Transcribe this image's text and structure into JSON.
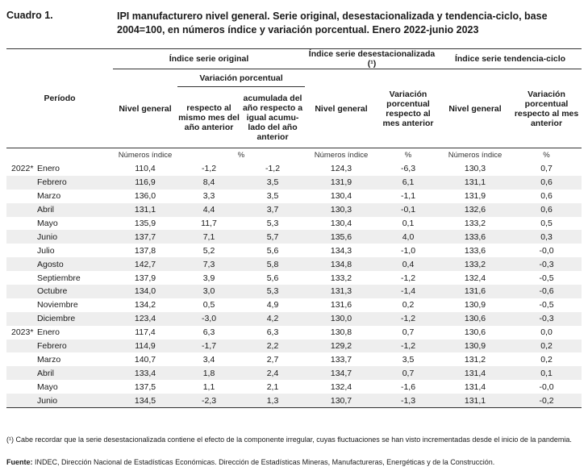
{
  "header": {
    "cuadro": "Cuadro 1.",
    "title": "IPI manufacturero nivel general. Serie original, desestacionalizada y tendencia-ciclo, base 2004=100, en números índice y variación porcentual. Enero 2022-junio 2023"
  },
  "table": {
    "periodo": "Período",
    "group_original": "Índice serie original",
    "group_desest": "Índice serie desestacionalizada (¹)",
    "group_tendencia": "Índice serie tendencia-ciclo",
    "sub_variacion": "Variación porcentual",
    "col_nivel": "Nivel general",
    "col_resp_anio": "respecto al mismo mes del año anterior",
    "col_acumulada": "acumulada del año respecto a igual acumu-lado del año anterior",
    "col_var_mes": "Variación porcentual respecto al mes anterior",
    "unit_indices": "Números índice",
    "unit_pct": "%",
    "rows": [
      {
        "year": "2022*",
        "month": "Enero",
        "c1": "110,4",
        "c2": "-1,2",
        "c3": "-1,2",
        "c4": "124,3",
        "c5": "-6,3",
        "c6": "130,3",
        "c7": "0,7"
      },
      {
        "year": "",
        "month": "Febrero",
        "c1": "116,9",
        "c2": "8,4",
        "c3": "3,5",
        "c4": "131,9",
        "c5": "6,1",
        "c6": "131,1",
        "c7": "0,6"
      },
      {
        "year": "",
        "month": "Marzo",
        "c1": "136,0",
        "c2": "3,3",
        "c3": "3,5",
        "c4": "130,4",
        "c5": "-1,1",
        "c6": "131,9",
        "c7": "0,6"
      },
      {
        "year": "",
        "month": "Abril",
        "c1": "131,1",
        "c2": "4,4",
        "c3": "3,7",
        "c4": "130,3",
        "c5": "-0,1",
        "c6": "132,6",
        "c7": "0,6"
      },
      {
        "year": "",
        "month": "Mayo",
        "c1": "135,9",
        "c2": "11,7",
        "c3": "5,3",
        "c4": "130,4",
        "c5": "0,1",
        "c6": "133,2",
        "c7": "0,5"
      },
      {
        "year": "",
        "month": "Junio",
        "c1": "137,7",
        "c2": "7,1",
        "c3": "5,7",
        "c4": "135,6",
        "c5": "4,0",
        "c6": "133,6",
        "c7": "0,3"
      },
      {
        "year": "",
        "month": "Julio",
        "c1": "137,8",
        "c2": "5,2",
        "c3": "5,6",
        "c4": "134,3",
        "c5": "-1,0",
        "c6": "133,6",
        "c7": "-0,0"
      },
      {
        "year": "",
        "month": "Agosto",
        "c1": "142,7",
        "c2": "7,3",
        "c3": "5,8",
        "c4": "134,8",
        "c5": "0,4",
        "c6": "133,2",
        "c7": "-0,3"
      },
      {
        "year": "",
        "month": "Septiembre",
        "c1": "137,9",
        "c2": "3,9",
        "c3": "5,6",
        "c4": "133,2",
        "c5": "-1,2",
        "c6": "132,4",
        "c7": "-0,5"
      },
      {
        "year": "",
        "month": "Octubre",
        "c1": "134,0",
        "c2": "3,0",
        "c3": "5,3",
        "c4": "131,3",
        "c5": "-1,4",
        "c6": "131,6",
        "c7": "-0,6"
      },
      {
        "year": "",
        "month": "Noviembre",
        "c1": "134,2",
        "c2": "0,5",
        "c3": "4,9",
        "c4": "131,6",
        "c5": "0,2",
        "c6": "130,9",
        "c7": "-0,5"
      },
      {
        "year": "",
        "month": "Diciembre",
        "c1": "123,4",
        "c2": "-3,0",
        "c3": "4,2",
        "c4": "130,0",
        "c5": "-1,2",
        "c6": "130,6",
        "c7": "-0,3"
      },
      {
        "year": "2023*",
        "month": "Enero",
        "c1": "117,4",
        "c2": "6,3",
        "c3": "6,3",
        "c4": "130,8",
        "c5": "0,7",
        "c6": "130,6",
        "c7": "0,0"
      },
      {
        "year": "",
        "month": "Febrero",
        "c1": "114,9",
        "c2": "-1,7",
        "c3": "2,2",
        "c4": "129,2",
        "c5": "-1,2",
        "c6": "130,9",
        "c7": "0,2"
      },
      {
        "year": "",
        "month": "Marzo",
        "c1": "140,7",
        "c2": "3,4",
        "c3": "2,7",
        "c4": "133,7",
        "c5": "3,5",
        "c6": "131,2",
        "c7": "0,2"
      },
      {
        "year": "",
        "month": "Abril",
        "c1": "133,4",
        "c2": "1,8",
        "c3": "2,4",
        "c4": "134,7",
        "c5": "0,7",
        "c6": "131,4",
        "c7": "0,1"
      },
      {
        "year": "",
        "month": "Mayo",
        "c1": "137,5",
        "c2": "1,1",
        "c3": "2,1",
        "c4": "132,4",
        "c5": "-1,6",
        "c6": "131,4",
        "c7": "-0,0"
      },
      {
        "year": "",
        "month": "Junio",
        "c1": "134,5",
        "c2": "-2,3",
        "c3": "1,3",
        "c4": "130,7",
        "c5": "-1,3",
        "c6": "131,1",
        "c7": "-0,2"
      }
    ]
  },
  "footnotes": {
    "note": "(¹) Cabe recordar que la serie desestacionalizada contiene el efecto de la componente irregular, cuyas fluctuaciones se han visto incrementadas desde el inicio de la pandemia.",
    "fuente_label": "Fuente:",
    "fuente_text": " INDEC, Dirección Nacional de Estadísticas Económicas. Dirección de Estadísticas Mineras, Manufactureras, Energéticas y de la Construcción."
  }
}
